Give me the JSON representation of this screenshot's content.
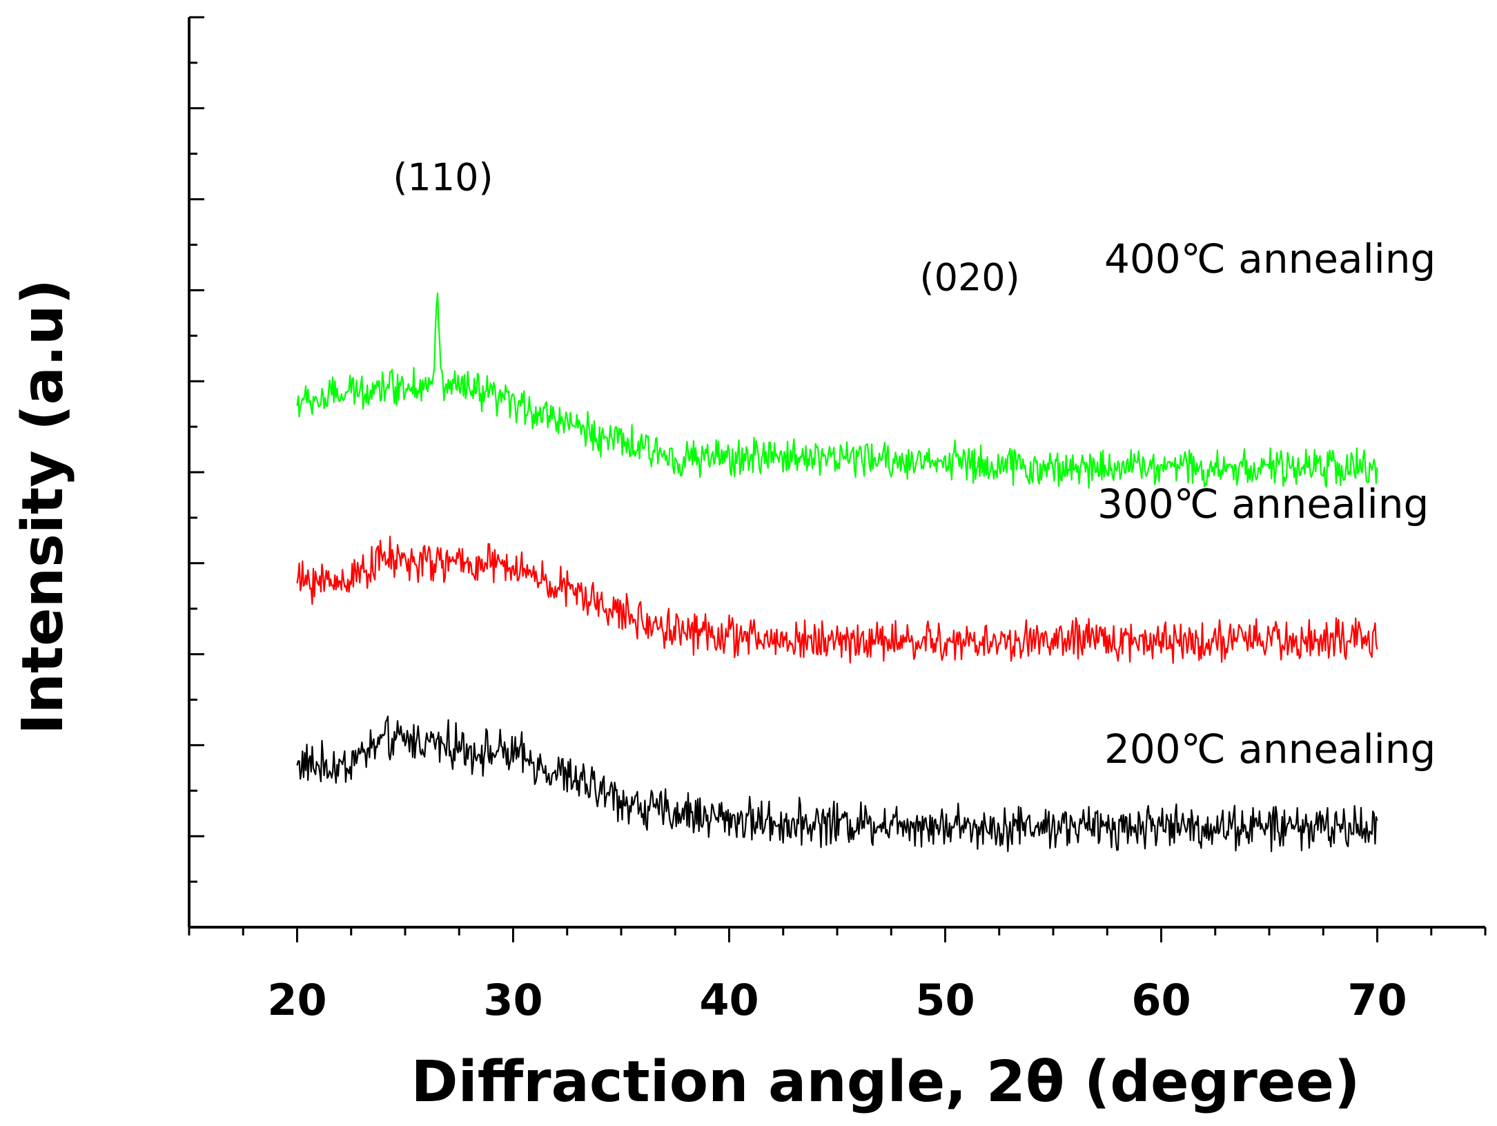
{
  "chart_data": {
    "type": "line",
    "title": "",
    "xlabel": "Diffraction angle, 2θ (degree)",
    "ylabel": "Intensity (a.u)",
    "xlim": [
      15,
      75
    ],
    "ylim": [
      0,
      10
    ],
    "xticks": [
      20,
      30,
      40,
      50,
      60,
      70
    ],
    "xtick_labels": [
      "20",
      "30",
      "40",
      "50",
      "60",
      "70"
    ],
    "grid": false,
    "y_tick_labels_shown": false,
    "series": [
      {
        "name": "200℃ annealing",
        "label": "200℃ annealing",
        "color": "#000000",
        "offset": 0.8,
        "points": [
          [
            20,
            1.0
          ],
          [
            22,
            0.95
          ],
          [
            24,
            1.25
          ],
          [
            26,
            1.25
          ],
          [
            28,
            1.15
          ],
          [
            30,
            1.1
          ],
          [
            32,
            0.9
          ],
          [
            34,
            0.7
          ],
          [
            36,
            0.5
          ],
          [
            38,
            0.45
          ],
          [
            40,
            0.4
          ],
          [
            42,
            0.35
          ],
          [
            44,
            0.35
          ],
          [
            46,
            0.35
          ],
          [
            48,
            0.35
          ],
          [
            50,
            0.32
          ],
          [
            52,
            0.3
          ],
          [
            54,
            0.32
          ],
          [
            56,
            0.3
          ],
          [
            58,
            0.3
          ],
          [
            60,
            0.32
          ],
          [
            62,
            0.3
          ],
          [
            64,
            0.3
          ],
          [
            66,
            0.3
          ],
          [
            68,
            0.3
          ],
          [
            70,
            0.3
          ]
        ],
        "noise": 0.13,
        "peaks": []
      },
      {
        "name": "300℃ annealing",
        "label": "300℃ annealing",
        "color": "#ff0000",
        "offset": 2.8,
        "points": [
          [
            20,
            1.0
          ],
          [
            22,
            1.0
          ],
          [
            24,
            1.25
          ],
          [
            26,
            1.2
          ],
          [
            28,
            1.2
          ],
          [
            30,
            1.15
          ],
          [
            32,
            0.95
          ],
          [
            34,
            0.75
          ],
          [
            36,
            0.55
          ],
          [
            38,
            0.45
          ],
          [
            40,
            0.4
          ],
          [
            42,
            0.35
          ],
          [
            44,
            0.35
          ],
          [
            46,
            0.35
          ],
          [
            48,
            0.35
          ],
          [
            50,
            0.32
          ],
          [
            52,
            0.32
          ],
          [
            54,
            0.35
          ],
          [
            56,
            0.35
          ],
          [
            58,
            0.35
          ],
          [
            60,
            0.35
          ],
          [
            62,
            0.35
          ],
          [
            64,
            0.35
          ],
          [
            66,
            0.35
          ],
          [
            68,
            0.35
          ],
          [
            70,
            0.35
          ]
        ],
        "noise": 0.12,
        "peaks": []
      },
      {
        "name": "400℃ annealing",
        "label": "400℃ annealing",
        "color": "#00ff00",
        "offset": 4.7,
        "points": [
          [
            20,
            1.05
          ],
          [
            22,
            1.15
          ],
          [
            24,
            1.25
          ],
          [
            26,
            1.25
          ],
          [
            28,
            1.2
          ],
          [
            30,
            1.05
          ],
          [
            32,
            0.9
          ],
          [
            34,
            0.7
          ],
          [
            36,
            0.55
          ],
          [
            38,
            0.45
          ],
          [
            40,
            0.45
          ],
          [
            42,
            0.48
          ],
          [
            44,
            0.48
          ],
          [
            46,
            0.45
          ],
          [
            48,
            0.42
          ],
          [
            50,
            0.42
          ],
          [
            52,
            0.38
          ],
          [
            54,
            0.35
          ],
          [
            56,
            0.35
          ],
          [
            58,
            0.38
          ],
          [
            60,
            0.38
          ],
          [
            62,
            0.35
          ],
          [
            64,
            0.35
          ],
          [
            66,
            0.35
          ],
          [
            68,
            0.35
          ],
          [
            70,
            0.35
          ]
        ],
        "noise": 0.11,
        "peaks": [
          [
            26.5,
            1.0
          ],
          [
            50.5,
            0.15
          ]
        ]
      }
    ],
    "annotations": [
      {
        "text": "(110)",
        "x": 26.5,
        "y": 8.1
      },
      {
        "text": "(020)",
        "x": 50.5,
        "y": 7.0
      }
    ]
  }
}
